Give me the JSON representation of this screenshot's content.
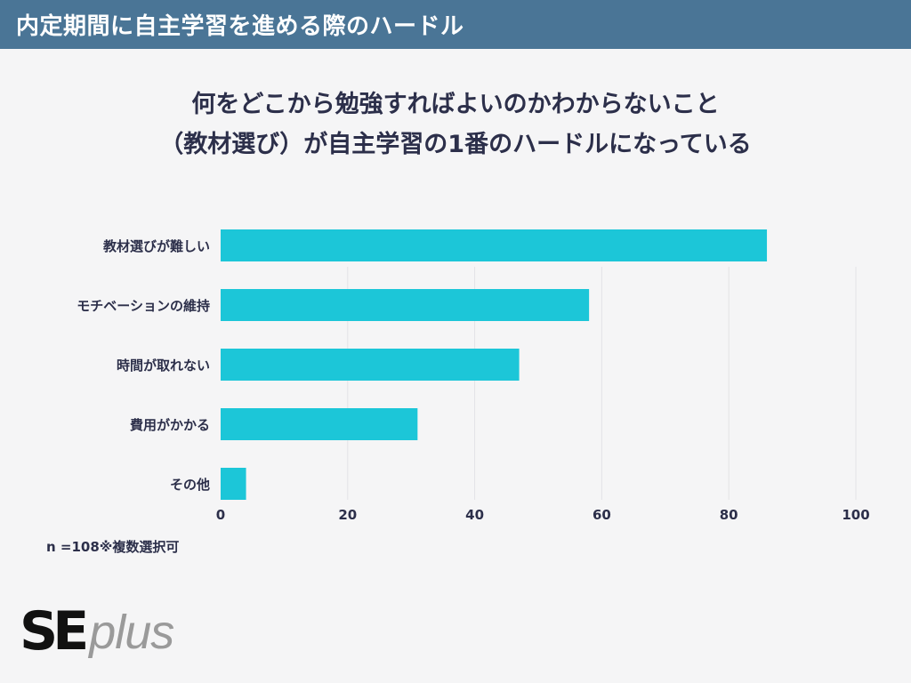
{
  "header": {
    "title": "内定期間に自主学習を進める際のハードル"
  },
  "headline": {
    "line1": "何をどこから勉強すればよいのかわからないこと",
    "line2": "（教材選び）が自主学習の1番のハードルになっている"
  },
  "note": "n =108※複数選択可",
  "logo": {
    "se": "SE",
    "plus": "plus"
  },
  "colors": {
    "header_bg": "#4a7596",
    "bar": "#1cc6d8",
    "text": "#2c2f4a",
    "grid": "#e3e3e6"
  },
  "chart_data": {
    "type": "bar",
    "orientation": "horizontal",
    "categories": [
      "教材選びが難しい",
      "モチベーションの維持",
      "時間が取れない",
      "費用がかかる",
      "その他"
    ],
    "values": [
      86,
      58,
      47,
      31,
      4
    ],
    "xlim": [
      0,
      100
    ],
    "xticks": [
      0,
      20,
      40,
      60,
      80,
      100
    ],
    "grid": true
  }
}
